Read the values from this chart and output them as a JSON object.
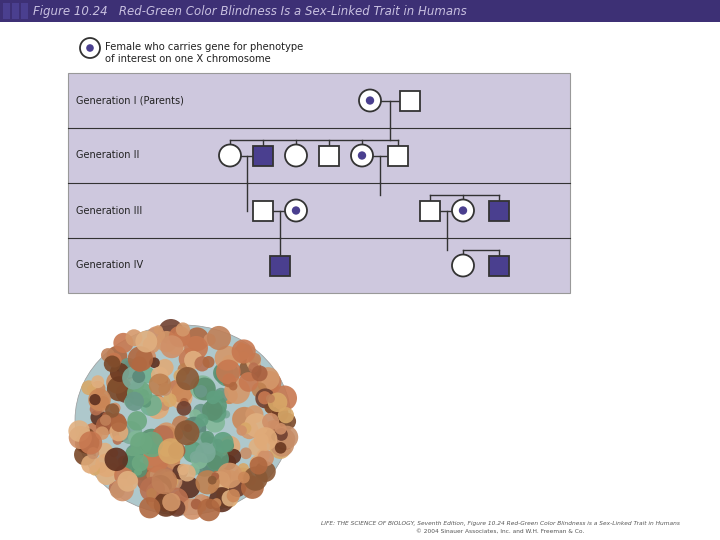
{
  "title": "Figure 10.24   Red-Green Color Blindness Is a Sex-Linked Trait in Humans",
  "title_bg": "#3d3075",
  "title_color": "#c8c0e0",
  "fig_bg": "#ffffff",
  "pedigree_bg": "#cec8de",
  "pedigree_border": "#999999",
  "purple_fill": "#4a3f8f",
  "white_fill": "#ffffff",
  "dot_color": "#4a3f8f",
  "line_color": "#333333",
  "text_color": "#222222",
  "legend_text1": "Female who carries gene for phenotype",
  "legend_text2": "of interest on one X chromosome",
  "gen_labels": [
    "Generation I (Parents)",
    "Generation II",
    "Generation III",
    "Generation IV"
  ],
  "footer_text1": "LIFE: THE SCIENCE OF BIOLOGY, Seventh Edition, Figure 10.24 Red-Green Color Blindness is a Sex-Linked Trait in Humans",
  "footer_text2": "© 2004 Sinauer Associates, Inc. and W.H. Freeman & Co."
}
